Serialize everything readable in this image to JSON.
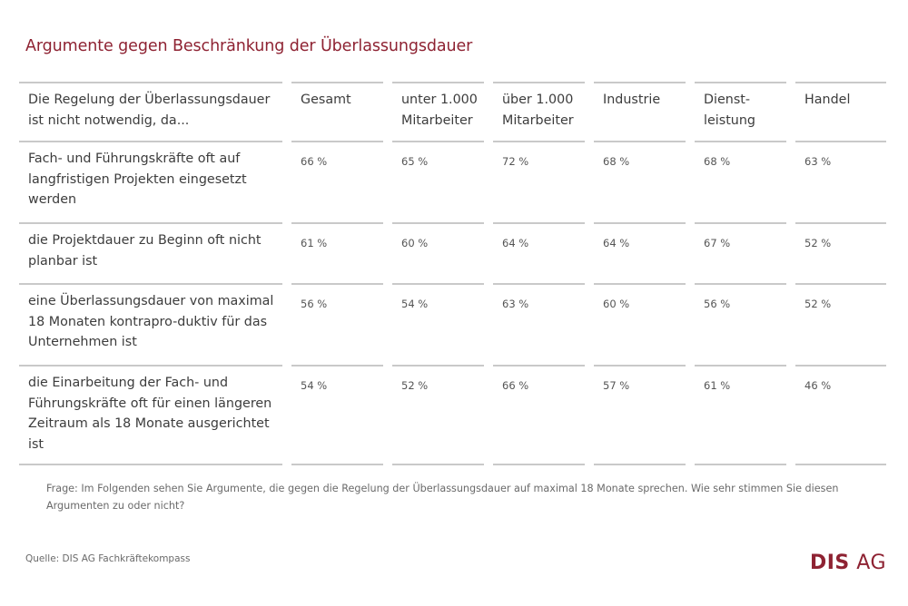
{
  "title": "Argumente gegen Beschränkung der Überlassungsdauer",
  "chart_data": {
    "type": "table",
    "row_header": "Die Regelung der Überlassungsdauer ist nicht notwendig, da...",
    "columns": [
      "Gesamt",
      "unter 1.000 Mitarbeiter",
      "über 1.000 Mitarbeiter",
      "Industrie",
      "Dienst-leistung",
      "Handel"
    ],
    "rows": [
      {
        "label": "Fach- und Führungskräfte oft auf langfristigen Projekten eingesetzt werden",
        "values": [
          "66 %",
          "65 %",
          "72 %",
          "68 %",
          "68 %",
          "63 %"
        ]
      },
      {
        "label": "die Projektdauer zu Beginn oft nicht planbar ist",
        "values": [
          "61 %",
          "60 %",
          "64 %",
          "64 %",
          "67 %",
          "52 %"
        ]
      },
      {
        "label": "eine Überlassungsdauer von maximal 18 Monaten kontrapro-duktiv für das Unternehmen ist",
        "values": [
          "56 %",
          "54 %",
          "63 %",
          "60 %",
          "56 %",
          "52 %"
        ]
      },
      {
        "label": "die Einarbeitung der Fach- und Führungskräfte oft für einen längeren Zeitraum als 18 Monate ausgerichtet ist",
        "values": [
          "54 %",
          "52 %",
          "66 %",
          "57 %",
          "61 %",
          "46 %"
        ]
      }
    ]
  },
  "footnote": "Frage: Im Folgenden sehen Sie Argumente, die gegen die Regelung der Überlassungsdauer auf maximal 18 Monate sprechen. Wie sehr stimmen Sie diesen Argumenten zu oder nicht?",
  "source": "Quelle:  DIS AG Fachkräftekompass",
  "logo": {
    "bold": "DIS",
    "regular": "AG"
  },
  "colors": {
    "accent": "#8e2232",
    "rule": "#c9c9c9",
    "text": "#3c3c3c"
  }
}
